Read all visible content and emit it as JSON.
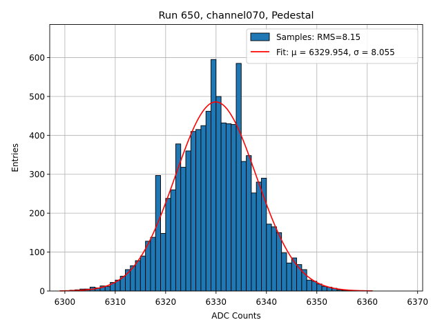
{
  "chart_data": {
    "type": "bar",
    "title": "Run 650, channel070, Pedestal",
    "xlabel": "ADC Counts",
    "ylabel": "Entries",
    "xlim": [
      6297,
      6371
    ],
    "ylim": [
      0,
      685
    ],
    "xticks": [
      6300,
      6310,
      6320,
      6330,
      6340,
      6350,
      6360,
      6370
    ],
    "yticks": [
      0,
      100,
      200,
      300,
      400,
      500,
      600
    ],
    "grid": true,
    "legend_placement": "top-right",
    "bar_color": "#1f77b4",
    "fit_color": "#ff0000",
    "histogram": {
      "name": "Samples: RMS=8.15",
      "bin_start": 6299,
      "bin_width": 1,
      "counts": [
        0,
        1,
        2,
        3,
        5,
        5,
        10,
        8,
        13,
        12,
        22,
        28,
        38,
        55,
        65,
        78,
        90,
        128,
        138,
        297,
        148,
        238,
        260,
        378,
        318,
        360,
        410,
        415,
        425,
        462,
        595,
        500,
        432,
        430,
        428,
        585,
        333,
        348,
        252,
        280,
        290,
        172,
        165,
        150,
        98,
        72,
        85,
        68,
        55,
        28,
        25,
        18,
        12,
        10,
        7,
        3,
        2,
        1,
        1,
        0,
        0,
        1
      ]
    },
    "fit": {
      "name": "Fit: μ = 6329.954, σ = 8.055",
      "mu": 6329.954,
      "sigma": 8.055,
      "amplitude": 486,
      "x_range": [
        6299,
        6361
      ]
    }
  }
}
